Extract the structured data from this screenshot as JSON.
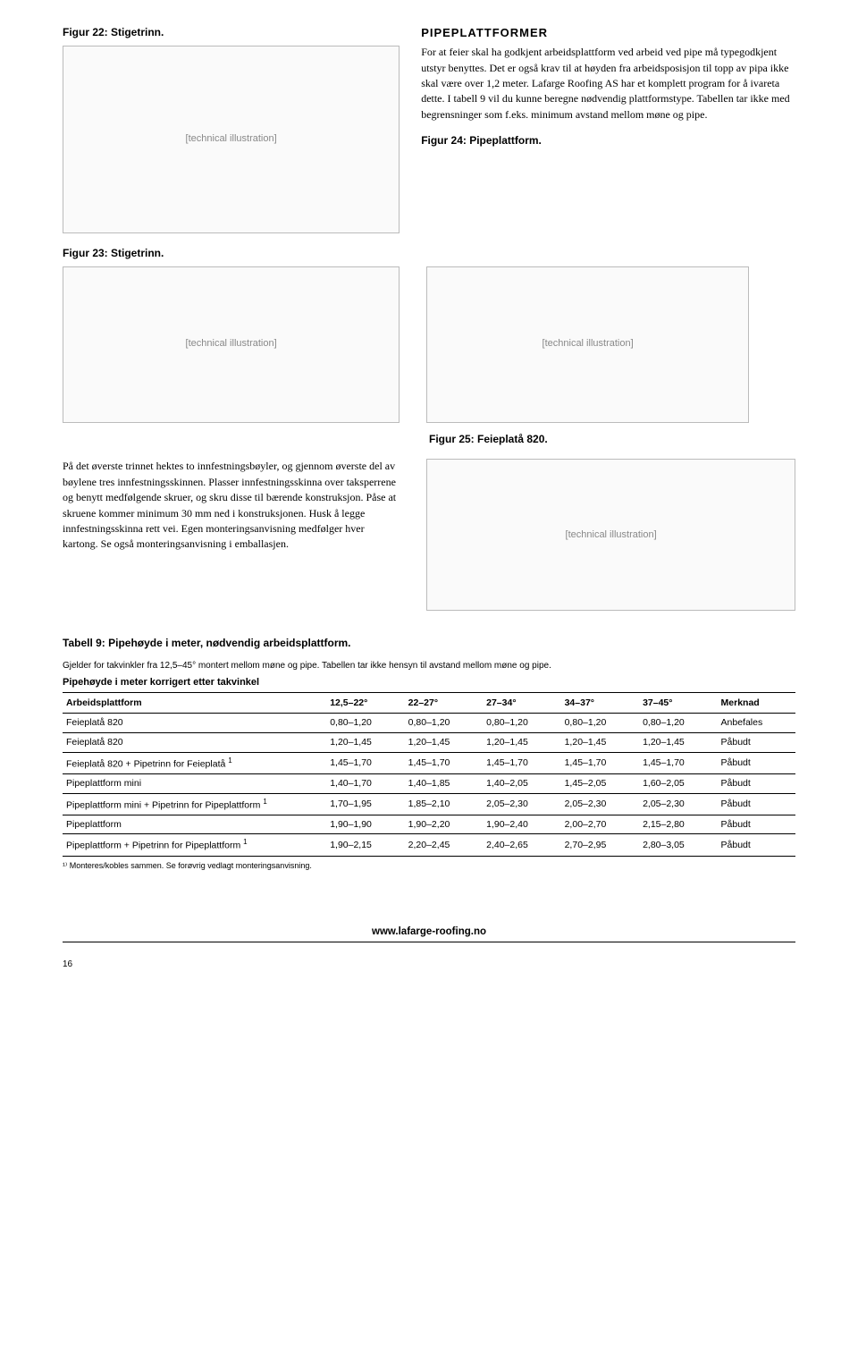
{
  "fig22": {
    "caption": "Figur 22: Stigetrinn.",
    "placeholder": "[technical illustration]"
  },
  "section": {
    "heading": "PIPEPLATTFORMER",
    "para": "For at feier skal ha godkjent arbeidsplattform ved arbeid ved pipe må typegodkjent utstyr benyttes. Det er også krav til at høyden fra arbeidsposisjon til topp av pipa ikke skal være over 1,2 meter. Lafarge Roofing AS har et komplett program for å ivareta dette. I tabell 9 vil du kunne beregne nødvendig plattformstype. Tabellen tar ikke med begrensninger som f.eks. minimum avstand mellom møne og pipe."
  },
  "fig24": {
    "caption": "Figur 24: Pipeplattform.",
    "placeholder": "[technical illustration]"
  },
  "fig23": {
    "caption": "Figur 23: Stigetrinn.",
    "placeholder": "[technical illustration]"
  },
  "fig25": {
    "caption": "Figur 25: Feieplatå 820.",
    "placeholder": "[technical illustration]"
  },
  "mid_text": "På det øverste trinnet hektes to innfestningsbøyler, og gjennom øverste del av bøylene tres innfestningsskinnen. Plasser innfestningsskinna over taksperrene og benytt medfølgende skruer, og skru disse til bærende konstruksjon. Påse at skruene kommer minimum 30 mm ned i konstruksjonen. Husk å legge innfestningsskinna rett vei. Egen monteringsanvisning medfølger hver kartong. Se også monteringsanvisning i emballasjen.",
  "table": {
    "title": "Tabell 9: Pipehøyde i meter, nødvendig arbeidsplattform.",
    "note": "Gjelder for takvinkler fra 12,5–45° montert mellom møne og pipe. Tabellen tar ikke hensyn til avstand mellom møne og pipe.",
    "subhead": "Pipehøyde i meter korrigert etter takvinkel",
    "columns": [
      "Arbeidsplattform",
      "12,5–22°",
      "22–27°",
      "27–34°",
      "34–37°",
      "37–45°",
      "Merknad"
    ],
    "rows": [
      [
        "Feieplatå 820",
        "0,80–1,20",
        "0,80–1,20",
        "0,80–1,20",
        "0,80–1,20",
        "0,80–1,20",
        "Anbefales"
      ],
      [
        "Feieplatå 820",
        "1,20–1,45",
        "1,20–1,45",
        "1,20–1,45",
        "1,20–1,45",
        "1,20–1,45",
        "Påbudt"
      ],
      [
        "Feieplatå 820 + Pipetrinn for Feieplatå ¹",
        "1,45–1,70",
        "1,45–1,70",
        "1,45–1,70",
        "1,45–1,70",
        "1,45–1,70",
        "Påbudt"
      ],
      [
        "Pipeplattform mini",
        "1,40–1,70",
        "1,40–1,85",
        "1,40–2,05",
        "1,45–2,05",
        "1,60–2,05",
        "Påbudt"
      ],
      [
        "Pipeplattform mini + Pipetrinn for Pipeplattform ¹",
        "1,70–1,95",
        "1,85–2,10",
        "2,05–2,30",
        "2,05–2,30",
        "2,05–2,30",
        "Påbudt"
      ],
      [
        "Pipeplattform",
        "1,90–1,90",
        "1,90–2,20",
        "1,90–2,40",
        "2,00–2,70",
        "2,15–2,80",
        "Påbudt"
      ],
      [
        "Pipeplattform + Pipetrinn for Pipeplattform ¹",
        "1,90–2,15",
        "2,20–2,45",
        "2,40–2,65",
        "2,70–2,95",
        "2,80–3,05",
        "Påbudt"
      ]
    ],
    "footnote": "¹⁾ Monteres/kobles sammen. Se forøvrig vedlagt monteringsanvisning."
  },
  "footer_url": "www.lafarge-roofing.no",
  "page_number": "16"
}
